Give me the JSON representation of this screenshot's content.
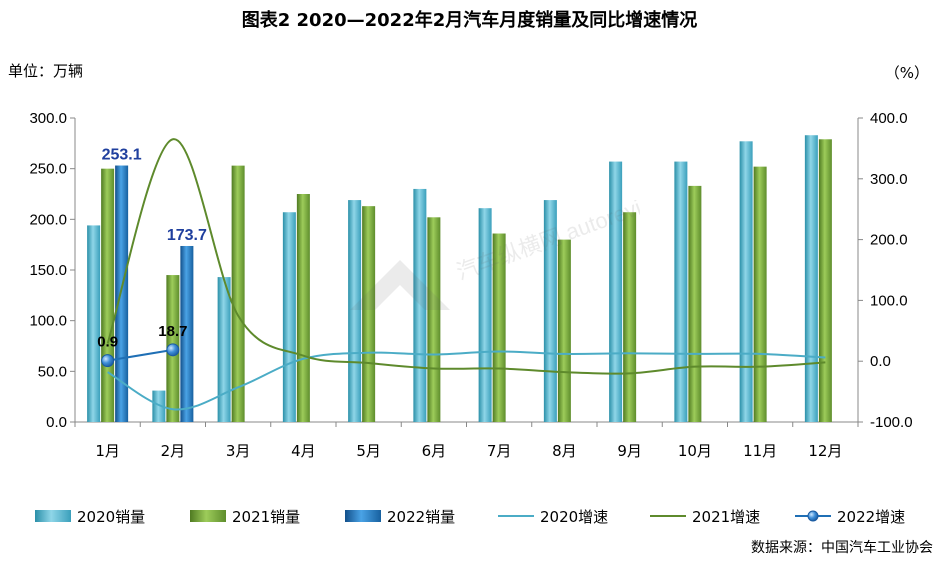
{
  "title": "图表2    2020—2022年2月汽车月度销量及同比增速情况",
  "unit_left": "单位：万辆",
  "unit_right": "（%）",
  "source": "数据来源：中国汽车工业协会",
  "watermark_text": "汽车纵横网 autoreview.com.cn",
  "colors": {
    "bar2020": "#4bacc6",
    "bar2021": "#77a33a",
    "bar2022": "#1f6fb5",
    "line2020": "#4bacc6",
    "line2021": "#5e8a2c",
    "line2022": "#1f6fb5",
    "label2022": "#1f3f9e"
  },
  "chart_data": {
    "type": "bar",
    "categories": [
      "1月",
      "2月",
      "3月",
      "4月",
      "5月",
      "6月",
      "7月",
      "8月",
      "9月",
      "10月",
      "11月",
      "12月"
    ],
    "series": [
      {
        "name": "2020销量",
        "kind": "bar",
        "axis": "left",
        "values": [
          194,
          31,
          143,
          207,
          219,
          230,
          211,
          219,
          257,
          257,
          277,
          283
        ]
      },
      {
        "name": "2021销量",
        "kind": "bar",
        "axis": "left",
        "values": [
          250,
          145,
          253,
          225,
          213,
          202,
          186,
          180,
          207,
          233,
          252,
          279
        ]
      },
      {
        "name": "2022销量",
        "kind": "bar",
        "axis": "left",
        "values": [
          253.1,
          173.7,
          null,
          null,
          null,
          null,
          null,
          null,
          null,
          null,
          null,
          null
        ]
      },
      {
        "name": "2020增速",
        "kind": "line",
        "axis": "right",
        "values": [
          -18,
          -79,
          -43,
          4,
          14,
          11,
          16,
          12,
          13,
          12,
          12,
          6
        ]
      },
      {
        "name": "2021增速",
        "kind": "line",
        "axis": "right",
        "values": [
          29,
          365,
          75,
          9,
          -3,
          -12,
          -12,
          -18,
          -20,
          -9,
          -9,
          -2
        ]
      },
      {
        "name": "2022增速",
        "kind": "line",
        "axis": "right",
        "values": [
          0.9,
          18.7,
          null,
          null,
          null,
          null,
          null,
          null,
          null,
          null,
          null,
          null
        ]
      }
    ],
    "data_labels": {
      "bar2022": [
        "253.1",
        "173.7"
      ],
      "line2022": [
        "0.9",
        "18.7"
      ]
    },
    "y_left": {
      "min": 0,
      "max": 300,
      "ticks": [
        "0.0",
        "50.0",
        "100.0",
        "150.0",
        "200.0",
        "250.0",
        "300.0"
      ]
    },
    "y_right": {
      "min": -100,
      "max": 400,
      "ticks": [
        "-100.0",
        "0.0",
        "100.0",
        "200.0",
        "300.0",
        "400.0"
      ]
    },
    "legend": [
      "2020销量",
      "2021销量",
      "2022销量",
      "2020增速",
      "2021增速",
      "2022增速"
    ],
    "legend_position": "bottom",
    "grid": false
  }
}
